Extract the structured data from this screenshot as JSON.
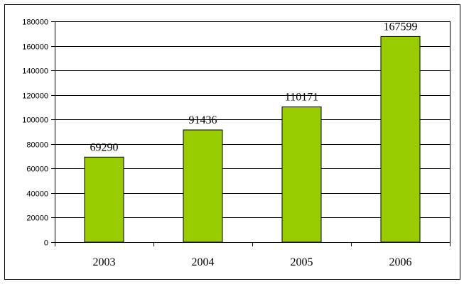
{
  "chart_data": {
    "type": "bar",
    "categories": [
      "2003",
      "2004",
      "2005",
      "2006"
    ],
    "values": [
      69290,
      91436,
      110171,
      167599
    ],
    "title": "",
    "xlabel": "",
    "ylabel": "",
    "ylim": [
      0,
      180000
    ],
    "yticks": [
      "0",
      "20000",
      "40000",
      "60000",
      "80000",
      "100000",
      "120000",
      "140000",
      "160000",
      "180000"
    ],
    "ytick_values": [
      0,
      20000,
      40000,
      60000,
      80000,
      100000,
      120000,
      140000,
      160000,
      180000
    ],
    "data_labels": [
      "69290",
      "91436",
      "110171",
      "167599"
    ],
    "grid": true,
    "legend": "none",
    "colors": {
      "bar_fill": "#99cc00",
      "bar_stroke": "#000000",
      "grid": "#000000",
      "frame": "#000000"
    }
  }
}
